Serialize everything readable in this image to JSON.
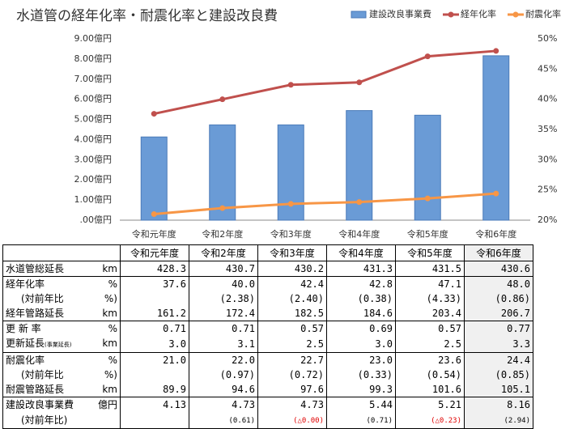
{
  "chart_data": {
    "type": "bar-line",
    "title": "水道管の経年化率・耐震化率と建設改良費",
    "categories": [
      "令和元年度",
      "令和2年度",
      "令和3年度",
      "令和4年度",
      "令和5年度",
      "令和6年度"
    ],
    "series": [
      {
        "name": "建設改良事業費",
        "type": "bar",
        "color": "#6a9bd6",
        "values": [
          4.13,
          4.73,
          4.73,
          5.44,
          5.21,
          8.16
        ]
      },
      {
        "name": "経年化率",
        "type": "line",
        "axis": "y2",
        "color": "#c0504d",
        "values": [
          37.6,
          40.0,
          42.4,
          42.8,
          47.1,
          48.0
        ]
      },
      {
        "name": "耐震化率",
        "type": "line",
        "axis": "y2",
        "color": "#f79646",
        "values": [
          21.0,
          22.0,
          22.7,
          23.0,
          23.6,
          24.4
        ]
      }
    ],
    "ylim": [
      0,
      9
    ],
    "yticks": [
      {
        "value": 0,
        "label": ".00億円"
      },
      {
        "value": 1,
        "label": "1.00億円"
      },
      {
        "value": 2,
        "label": "2.00億円"
      },
      {
        "value": 3,
        "label": "3.00億円"
      },
      {
        "value": 4,
        "label": "4.00億円"
      },
      {
        "value": 5,
        "label": "5.00億円"
      },
      {
        "value": 6,
        "label": "6.00億円"
      },
      {
        "value": 7,
        "label": "7.00億円"
      },
      {
        "value": 8,
        "label": "8.00億円"
      },
      {
        "value": 9,
        "label": "9.00億円"
      }
    ],
    "y2lim": [
      20,
      50
    ],
    "y2ticks": [
      {
        "value": 20,
        "label": "20%"
      },
      {
        "value": 25,
        "label": "25%"
      },
      {
        "value": 30,
        "label": "30%"
      },
      {
        "value": 35,
        "label": "35%"
      },
      {
        "value": 40,
        "label": "40%"
      },
      {
        "value": 45,
        "label": "45%"
      },
      {
        "value": 50,
        "label": "50%"
      }
    ],
    "grid": false,
    "legend": "top-right"
  },
  "table": {
    "header": [
      "令和元年度",
      "令和2年度",
      "令和3年度",
      "令和4年度",
      "令和5年度",
      "令和6年度"
    ],
    "rows": [
      {
        "label": "水道管総延長",
        "unit": "km",
        "values": [
          "428.3",
          "430.7",
          "430.2",
          "431.3",
          "431.5",
          "430.6"
        ]
      },
      {
        "label": "経年化率",
        "unit": "%",
        "values": [
          "37.6",
          "40.0",
          "42.4",
          "42.8",
          "47.1",
          "48.0"
        ]
      },
      {
        "label": "(対前年比",
        "unit": "%)",
        "values": [
          null,
          "(2.38)",
          "(2.40)",
          "(0.38)",
          "(4.33)",
          "(0.86)"
        ]
      },
      {
        "label": "経年管路延長",
        "unit": "km",
        "values": [
          "161.2",
          "172.4",
          "182.5",
          "184.6",
          "203.4",
          "206.7"
        ]
      },
      {
        "label": "更 新 率",
        "unit": "%",
        "values": [
          "0.71",
          "0.71",
          "0.57",
          "0.69",
          "0.57",
          "0.77"
        ]
      },
      {
        "label": "更新延長",
        "note": "(事業延長)",
        "unit": "km",
        "values": [
          "3.0",
          "3.1",
          "2.5",
          "3.0",
          "2.5",
          "3.3"
        ]
      },
      {
        "label": "耐震化率",
        "unit": "%",
        "values": [
          "21.0",
          "22.0",
          "22.7",
          "23.0",
          "23.6",
          "24.4"
        ]
      },
      {
        "label": "(対前年比",
        "unit": "%)",
        "values": [
          null,
          "(0.97)",
          "(0.72)",
          "(0.33)",
          "(0.54)",
          "(0.85)"
        ]
      },
      {
        "label": "耐震管路延長",
        "unit": "km",
        "values": [
          "89.9",
          "94.6",
          "97.6",
          "99.3",
          "101.6",
          "105.1"
        ]
      },
      {
        "label": "建設改良事業費",
        "unit": "億円",
        "values": [
          "4.13",
          "4.73",
          "4.73",
          "5.44",
          "5.21",
          "8.16"
        ]
      },
      {
        "label": "(対前年比)",
        "values": [
          null,
          "(0.61)",
          "(△0.00)",
          "(0.71)",
          "(△0.23)",
          "(2.94)"
        ]
      }
    ]
  }
}
